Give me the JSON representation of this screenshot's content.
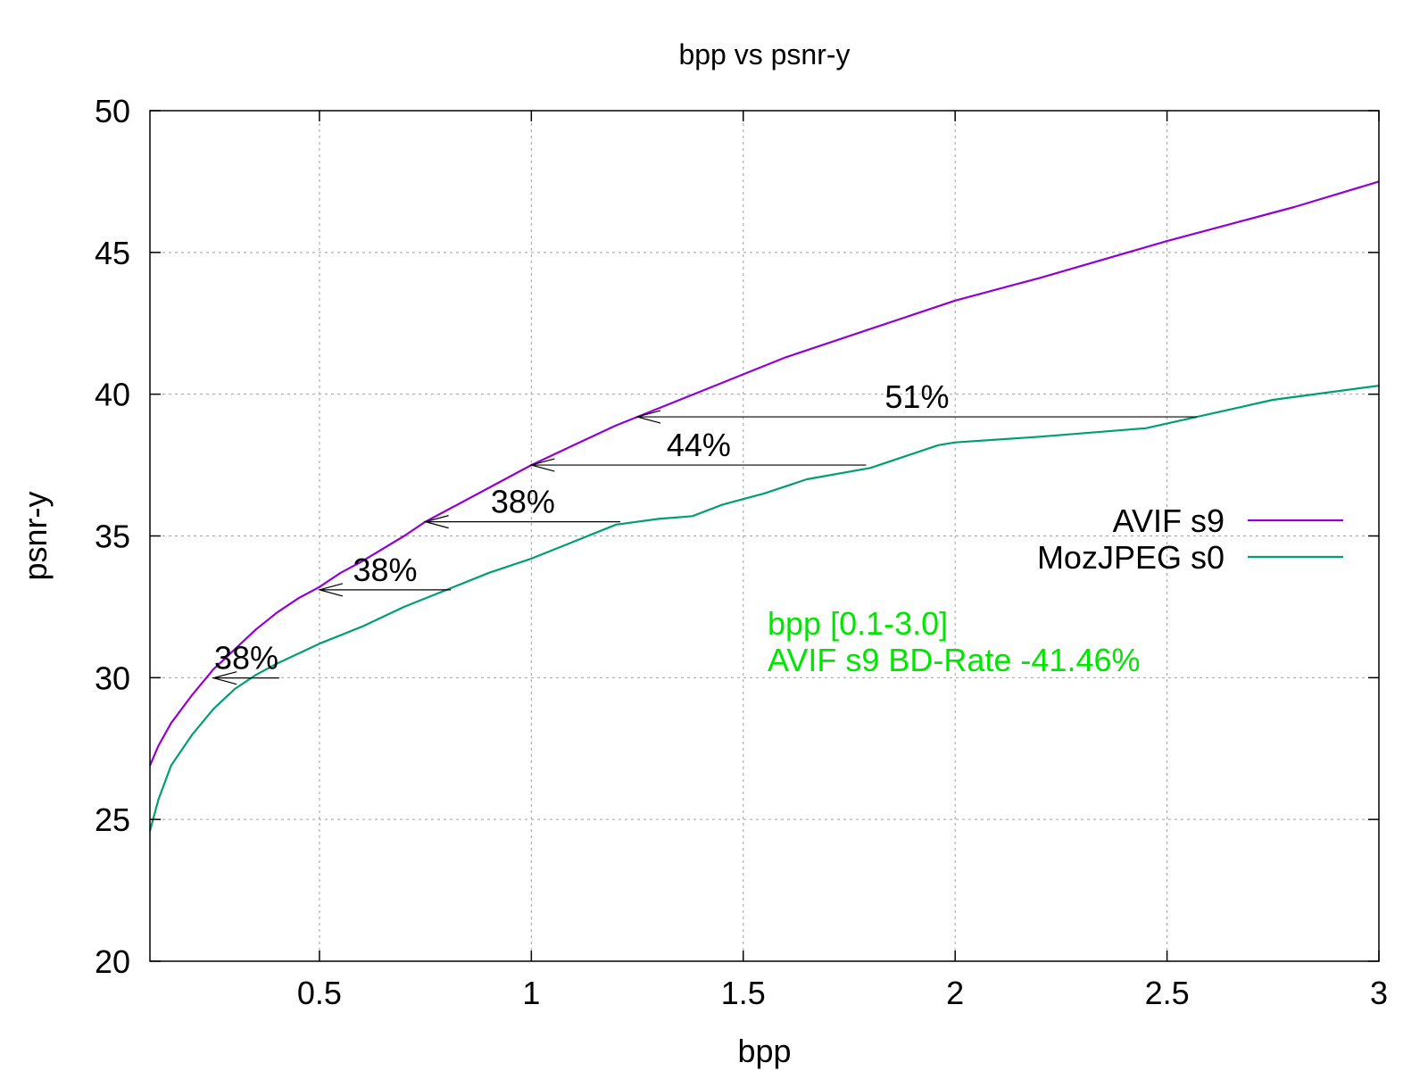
{
  "chart_data": {
    "type": "line",
    "title": "bpp vs psnr-y",
    "xlabel": "bpp",
    "ylabel": "psnr-y",
    "xlim": [
      0.1,
      3.0
    ],
    "ylim": [
      20,
      50
    ],
    "xticks": [
      0.5,
      1,
      1.5,
      2,
      2.5,
      3
    ],
    "yticks": [
      20,
      25,
      30,
      35,
      40,
      45,
      50
    ],
    "grid": true,
    "legend_position": "right",
    "series": [
      {
        "name": "AVIF s9",
        "color": "#9400d3",
        "x": [
          0.1,
          0.12,
          0.15,
          0.2,
          0.25,
          0.3,
          0.35,
          0.4,
          0.45,
          0.5,
          0.55,
          0.6,
          0.7,
          0.75,
          0.8,
          0.9,
          1.0,
          1.1,
          1.2,
          1.25,
          1.4,
          1.5,
          1.6,
          1.8,
          2.0,
          2.2,
          2.5,
          2.8,
          3.0
        ],
        "y": [
          26.9,
          27.6,
          28.4,
          29.4,
          30.3,
          31.0,
          31.7,
          32.3,
          32.8,
          33.2,
          33.7,
          34.1,
          35.0,
          35.5,
          35.9,
          36.7,
          37.5,
          38.2,
          38.9,
          39.2,
          40.1,
          40.7,
          41.3,
          42.3,
          43.3,
          44.1,
          45.4,
          46.6,
          47.5
        ]
      },
      {
        "name": "MozJPEG s0",
        "color": "#009e73",
        "x": [
          0.1,
          0.12,
          0.15,
          0.2,
          0.25,
          0.3,
          0.35,
          0.4,
          0.5,
          0.6,
          0.7,
          0.8,
          0.9,
          1.0,
          1.05,
          1.1,
          1.15,
          1.2,
          1.3,
          1.38,
          1.45,
          1.55,
          1.65,
          1.8,
          1.9,
          1.96,
          2.0,
          2.2,
          2.45,
          2.6,
          2.75,
          3.0
        ],
        "y": [
          24.6,
          25.7,
          26.9,
          28.0,
          28.9,
          29.6,
          30.1,
          30.5,
          31.2,
          31.8,
          32.5,
          33.1,
          33.7,
          34.2,
          34.5,
          34.8,
          35.1,
          35.4,
          35.6,
          35.7,
          36.1,
          36.5,
          37.0,
          37.4,
          37.9,
          38.2,
          38.3,
          38.5,
          38.8,
          39.3,
          39.8,
          40.3
        ]
      }
    ],
    "annotations": [
      {
        "label": "38%",
        "y": 29.99,
        "x_from": 0.405,
        "x_to": 0.25
      },
      {
        "label": "38%",
        "y": 33.1,
        "x_from": 0.81,
        "x_to": 0.5
      },
      {
        "label": "38%",
        "y": 35.5,
        "x_from": 1.21,
        "x_to": 0.75
      },
      {
        "label": "44%",
        "y": 37.5,
        "x_from": 1.79,
        "x_to": 1.0
      },
      {
        "label": "51%",
        "y": 39.2,
        "x_from": 2.57,
        "x_to": 1.25
      }
    ],
    "notes": {
      "color": "#00e600",
      "lines": [
        "bpp [0.1-3.0]",
        "AVIF s9 BD-Rate -41.46%"
      ]
    }
  }
}
